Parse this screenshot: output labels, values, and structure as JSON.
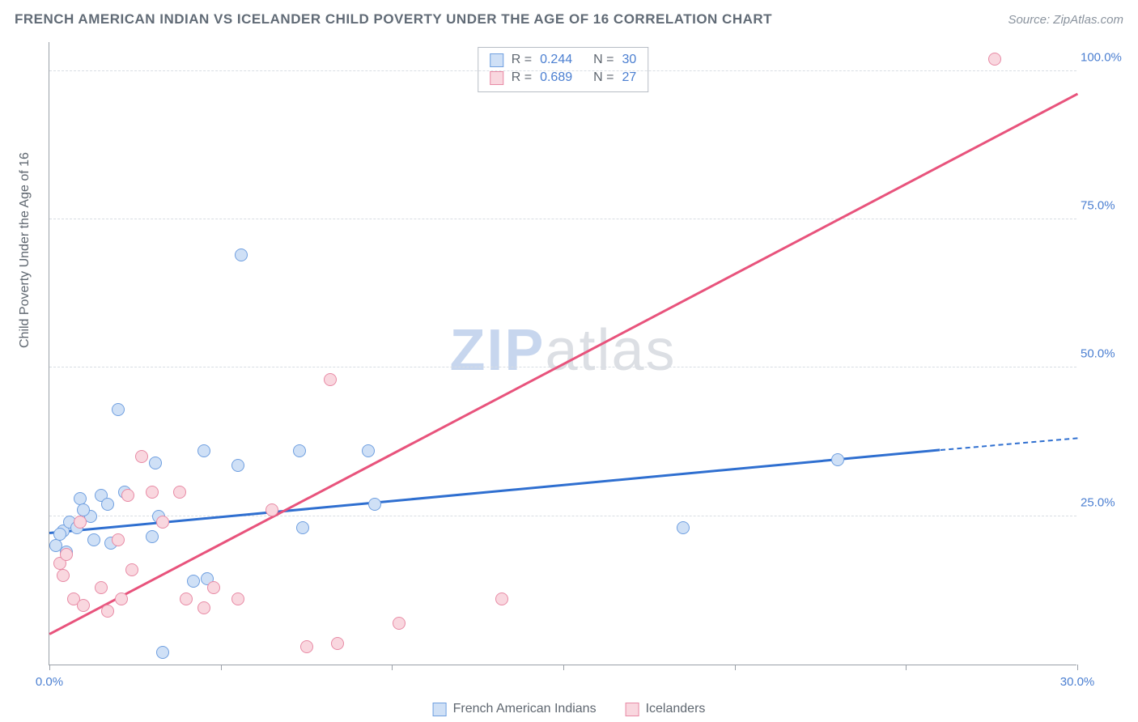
{
  "title": "FRENCH AMERICAN INDIAN VS ICELANDER CHILD POVERTY UNDER THE AGE OF 16 CORRELATION CHART",
  "source_label": "Source: ZipAtlas.com",
  "ylabel": "Child Poverty Under the Age of 16",
  "watermark_a": "ZIP",
  "watermark_b": "atlas",
  "chart": {
    "type": "scatter-with-regression",
    "xlim": [
      0,
      30
    ],
    "ylim": [
      0,
      105
    ],
    "xtick_positions": [
      0,
      5,
      10,
      15,
      20,
      25,
      30
    ],
    "xtick_labels": {
      "0": "0.0%",
      "30": "30.0%"
    },
    "ytick_positions": [
      25,
      50,
      75,
      100
    ],
    "ytick_labels": [
      "25.0%",
      "50.0%",
      "75.0%",
      "100.0%"
    ],
    "grid_color": "#d8dde3",
    "axis_color": "#9aa0a8",
    "background_color": "#ffffff",
    "tick_label_color": "#4b7fd1",
    "point_radius": 8,
    "point_border_width": 1.2
  },
  "series": [
    {
      "name": "French American Indians",
      "fill": "#cfe0f6",
      "stroke": "#6f9fe0",
      "line_color": "#2f6fd0",
      "R": "0.244",
      "N": "30",
      "trend": {
        "x1": 0,
        "y1": 22,
        "x2": 26,
        "y2": 36,
        "dash_to_x": 30,
        "dash_to_y": 38
      },
      "points": [
        [
          0.2,
          20
        ],
        [
          0.4,
          22.5
        ],
        [
          0.5,
          19
        ],
        [
          0.6,
          24
        ],
        [
          0.8,
          23
        ],
        [
          0.9,
          28
        ],
        [
          1.2,
          25
        ],
        [
          1.3,
          21
        ],
        [
          1.5,
          28.5
        ],
        [
          1.8,
          20.5
        ],
        [
          1.7,
          27
        ],
        [
          2.0,
          43
        ],
        [
          2.2,
          29
        ],
        [
          3.0,
          21.5
        ],
        [
          3.1,
          34
        ],
        [
          3.2,
          25
        ],
        [
          3.3,
          2
        ],
        [
          4.2,
          14
        ],
        [
          4.5,
          36
        ],
        [
          4.6,
          14.5
        ],
        [
          5.5,
          33.5
        ],
        [
          5.6,
          69
        ],
        [
          7.3,
          36
        ],
        [
          7.4,
          23
        ],
        [
          9.3,
          36
        ],
        [
          9.5,
          27
        ],
        [
          18.5,
          23
        ],
        [
          23,
          34.5
        ],
        [
          0.3,
          22
        ],
        [
          1.0,
          26
        ]
      ]
    },
    {
      "name": "Icelanders",
      "fill": "#f9d7df",
      "stroke": "#e88aa5",
      "line_color": "#e8537c",
      "R": "0.689",
      "N": "27",
      "trend": {
        "x1": 0,
        "y1": 5,
        "x2": 30,
        "y2": 96
      },
      "points": [
        [
          0.3,
          17
        ],
        [
          0.4,
          15
        ],
        [
          0.5,
          18.5
        ],
        [
          0.7,
          11
        ],
        [
          0.9,
          24
        ],
        [
          1.0,
          10
        ],
        [
          1.5,
          13
        ],
        [
          1.7,
          9
        ],
        [
          2.0,
          21
        ],
        [
          2.3,
          28.5
        ],
        [
          2.4,
          16
        ],
        [
          2.7,
          35
        ],
        [
          3.0,
          29
        ],
        [
          3.3,
          24
        ],
        [
          3.8,
          29
        ],
        [
          4.0,
          11
        ],
        [
          4.5,
          9.5
        ],
        [
          4.8,
          13
        ],
        [
          5.5,
          11
        ],
        [
          6.5,
          26
        ],
        [
          7.5,
          3
        ],
        [
          8.2,
          48
        ],
        [
          8.4,
          3.5
        ],
        [
          10.2,
          7
        ],
        [
          13.2,
          11
        ],
        [
          27.6,
          102
        ],
        [
          2.1,
          11
        ]
      ]
    }
  ],
  "stats_labels": {
    "R": "R =",
    "N": "N ="
  },
  "legend": {
    "series1_label": "French American Indians",
    "series2_label": "Icelanders"
  }
}
